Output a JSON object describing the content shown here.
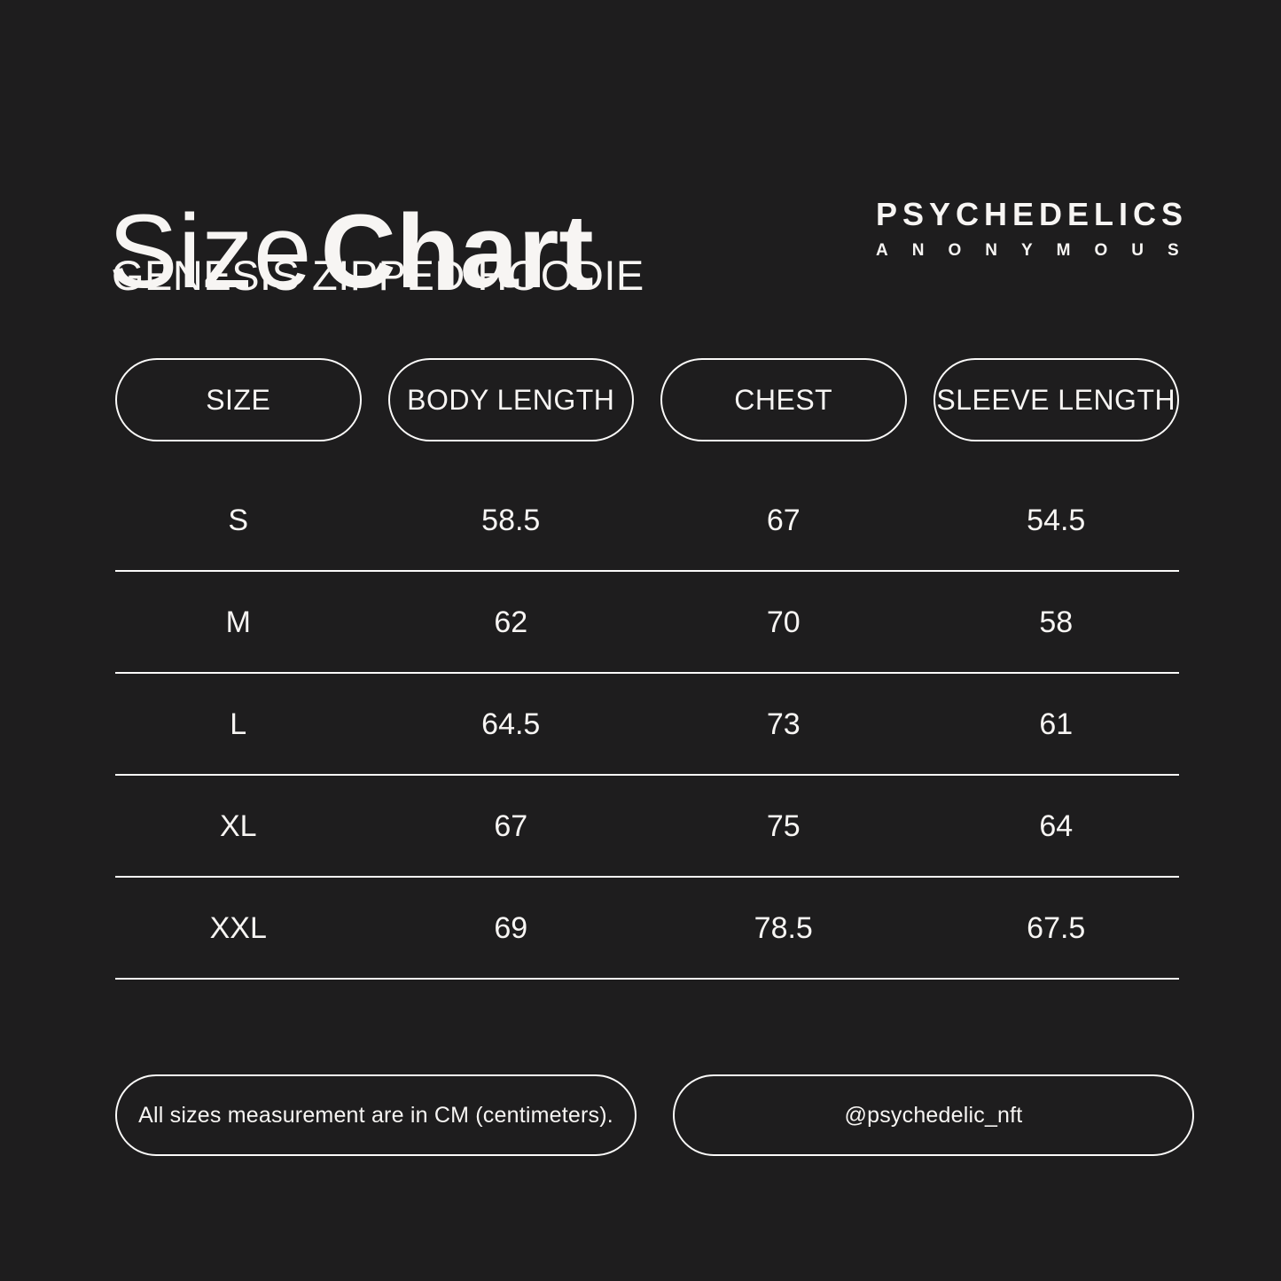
{
  "colors": {
    "background": "#1e1d1e",
    "text": "#f7f5f3",
    "line": "#fbfaf9"
  },
  "header": {
    "title_light": "Size",
    "title_bold": "Chart",
    "subtitle": "GENESIS ZIPPED HOODIE",
    "brand_name": "PSYCHEDELICS",
    "brand_sub": "ANONYMOUS"
  },
  "chart_data": {
    "type": "table",
    "title": "Size Chart",
    "subtitle": "GENESIS ZIPPED HOODIE",
    "columns": [
      "SIZE",
      "BODY LENGTH",
      "CHEST",
      "SLEEVE LENGTH"
    ],
    "rows": [
      [
        "S",
        "58.5",
        "67",
        "54.5"
      ],
      [
        "M",
        "62",
        "70",
        "58"
      ],
      [
        "L",
        "64.5",
        "73",
        "61"
      ],
      [
        "XL",
        "67",
        "75",
        "64"
      ],
      [
        "XXL",
        "69",
        "78.5",
        "67.5"
      ]
    ]
  },
  "footer": {
    "note": "All sizes measurement are in CM (centimeters).",
    "handle": "@psychedelic_nft"
  }
}
